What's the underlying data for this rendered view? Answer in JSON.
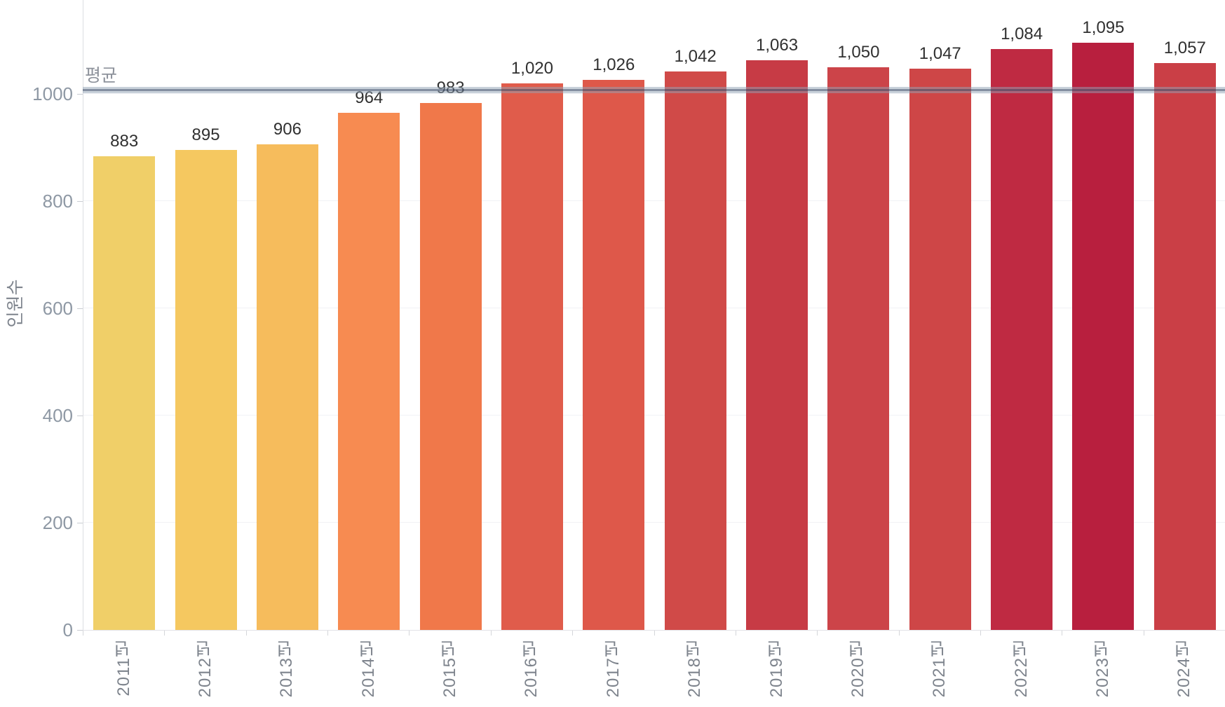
{
  "chart_data": {
    "type": "bar",
    "title": "",
    "xlabel": "",
    "ylabel": "인원수",
    "categories": [
      "2011년",
      "2012년",
      "2013년",
      "2014년",
      "2015년",
      "2016년",
      "2017년",
      "2018년",
      "2019년",
      "2020년",
      "2021년",
      "2022년",
      "2023년",
      "2024년"
    ],
    "values": [
      883,
      895,
      906,
      964,
      983,
      1020,
      1026,
      1042,
      1063,
      1050,
      1047,
      1084,
      1095,
      1057
    ],
    "value_labels": [
      "883",
      "895",
      "906",
      "964",
      "983",
      "1,020",
      "1,026",
      "1,042",
      "1,063",
      "1,050",
      "1,047",
      "1,084",
      "1,095",
      "1,057"
    ],
    "bar_colors": [
      "#f0cf68",
      "#f5c860",
      "#f6bc5c",
      "#f78b51",
      "#f0784a",
      "#e05c4b",
      "#de584a",
      "#d04a48",
      "#c73b45",
      "#cc4449",
      "#ce4647",
      "#bf2a42",
      "#b81f3e",
      "#ca3f46"
    ],
    "ylim": [
      0,
      1175
    ],
    "yticks": [
      0,
      200,
      400,
      600,
      800,
      1000
    ],
    "grid": "horizontal",
    "legend_position": "none",
    "average_line": {
      "label": "평균",
      "value": 1008
    }
  },
  "colors": {
    "background": "#ffffff",
    "axis_line": "#dcdee2",
    "gridline": "#f1f2f5",
    "tick_mark": "#d4d6da",
    "y_tick_label": "#8e98a4",
    "x_tick_label": "#7e848d",
    "axis_title": "#7e848d",
    "value_label": "#303030",
    "average_label_color": "#8d929b",
    "average_band_outer": "rgba(146,164,182,0.5)",
    "average_band_core": "rgba(30,45,75,0.4)"
  }
}
